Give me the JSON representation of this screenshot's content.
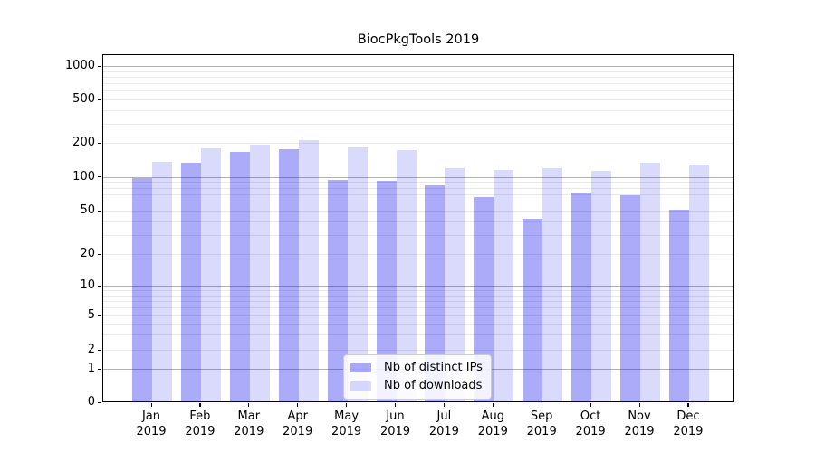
{
  "title": "BiocPkgTools 2019",
  "chart_data": {
    "type": "bar",
    "title": "BiocPkgTools 2019",
    "categories": [
      "Jan",
      "Feb",
      "Mar",
      "Apr",
      "May",
      "Jun",
      "Jul",
      "Aug",
      "Sep",
      "Oct",
      "Nov",
      "Dec"
    ],
    "category_year": "2019",
    "x_tick_labels": [
      "Jan 2019",
      "Feb 2019",
      "Mar 2019",
      "Apr 2019",
      "May 2019",
      "Jun 2019",
      "Jul 2019",
      "Aug 2019",
      "Sep 2019",
      "Oct 2019",
      "Nov 2019",
      "Dec 2019"
    ],
    "series": [
      {
        "name": "Nb of distinct IPs",
        "color": "rgba(10,10,240,0.34)",
        "values": [
          100,
          136,
          169,
          179,
          96,
          93,
          85,
          67,
          43,
          74,
          70,
          52
        ]
      },
      {
        "name": "Nb of downloads",
        "color": "rgba(10,10,240,0.15)",
        "values": [
          138,
          182,
          196,
          216,
          186,
          176,
          121,
          117,
          122,
          115,
          136,
          131
        ]
      }
    ],
    "y_ticks": [
      0,
      1,
      2,
      5,
      10,
      20,
      50,
      100,
      200,
      500,
      1000
    ],
    "y_minor_ticks": [
      2,
      3,
      4,
      5,
      6,
      7,
      8,
      9,
      20,
      30,
      40,
      50,
      60,
      70,
      80,
      90,
      200,
      300,
      400,
      500,
      600,
      700,
      800,
      900
    ],
    "y_major_gridlines": [
      1,
      10,
      100,
      1000
    ],
    "yscale": "symlog",
    "ylim": [
      0,
      1400
    ],
    "xlabel": "",
    "ylabel": "",
    "grid": "horizontal only",
    "legend_position": "lower center",
    "colors": {
      "bar_distinct_ips": "#abaff9",
      "bar_downloads": "#dadcfd",
      "grid_major": "#b2b2b2",
      "grid_minor": "#e9e9e9",
      "axis": "#000000",
      "background": "#ffffff"
    }
  }
}
